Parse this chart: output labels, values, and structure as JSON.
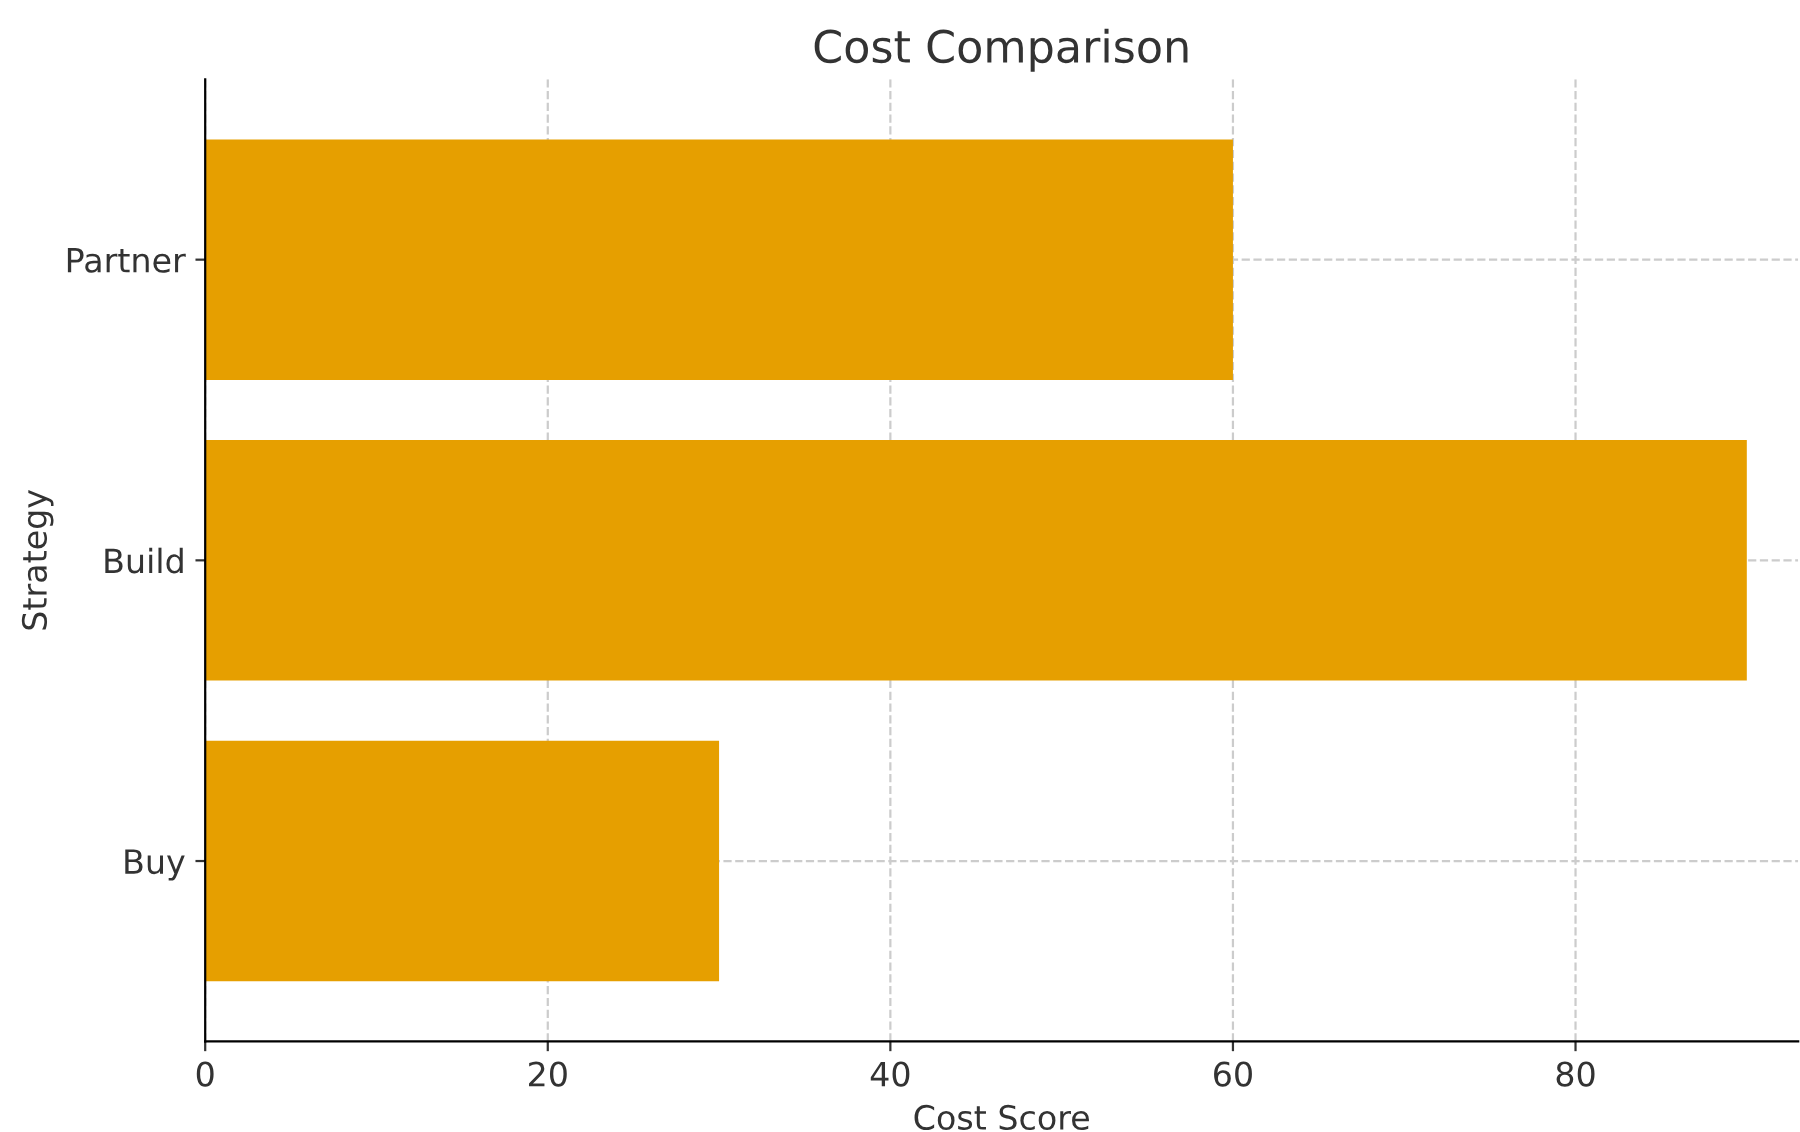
{
  "chart_data": {
    "type": "bar",
    "orientation": "horizontal",
    "title": "Cost Comparison",
    "xlabel": "Cost Score",
    "ylabel": "Strategy",
    "categories": [
      "Partner",
      "Build",
      "Buy"
    ],
    "values": [
      60,
      90,
      30
    ],
    "color": "#e69f00",
    "xlim": [
      0,
      93
    ],
    "xticks": [
      0,
      20,
      40,
      60,
      80
    ],
    "grid": true
  }
}
